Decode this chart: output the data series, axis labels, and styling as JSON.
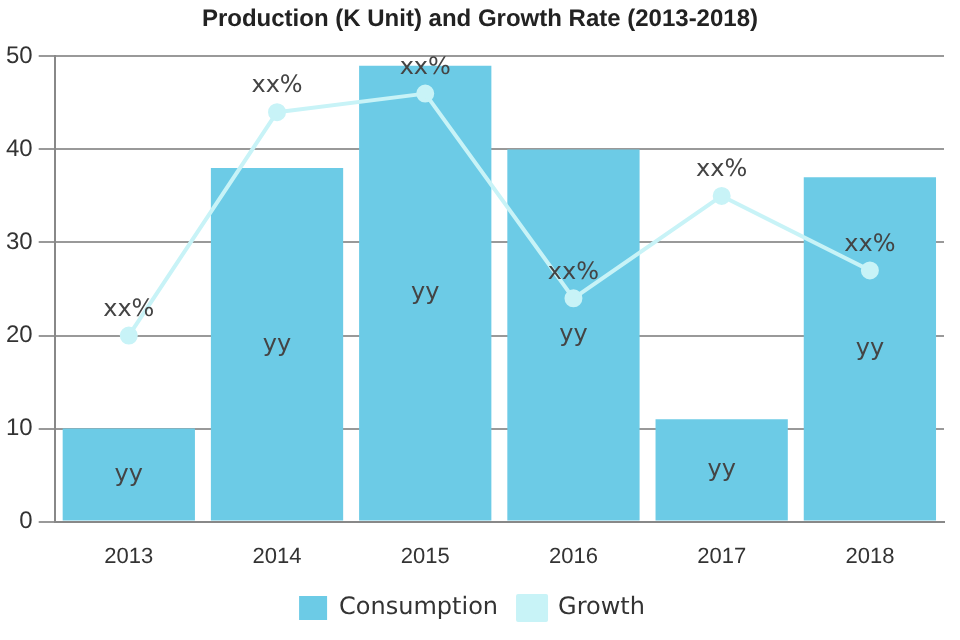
{
  "chart_data": {
    "type": "bar",
    "title": "Production (K Unit) and Growth Rate (2013-2018)",
    "categories": [
      "2013",
      "2014",
      "2015",
      "2016",
      "2017",
      "2018"
    ],
    "series": [
      {
        "name": "Consumption",
        "color": "#6ccbe6",
        "values": [
          10,
          38,
          49,
          40,
          11,
          37
        ],
        "value_labels": [
          "yy",
          "yy",
          "yy",
          "yy",
          "yy",
          "yy"
        ]
      },
      {
        "name": "Growth",
        "type": "line",
        "color": "#c8f3f7",
        "values": [
          20,
          44,
          46,
          24,
          35,
          27
        ],
        "value_labels": [
          "xx%",
          "xx%",
          "xx%",
          "xx%",
          "xx%",
          "xx%"
        ]
      }
    ],
    "ylim": [
      0,
      50
    ],
    "yticks": [
      0,
      10,
      20,
      30,
      40,
      50
    ],
    "grid": "y",
    "legend": "bottom",
    "marker": "circle",
    "line_style": "solid"
  }
}
